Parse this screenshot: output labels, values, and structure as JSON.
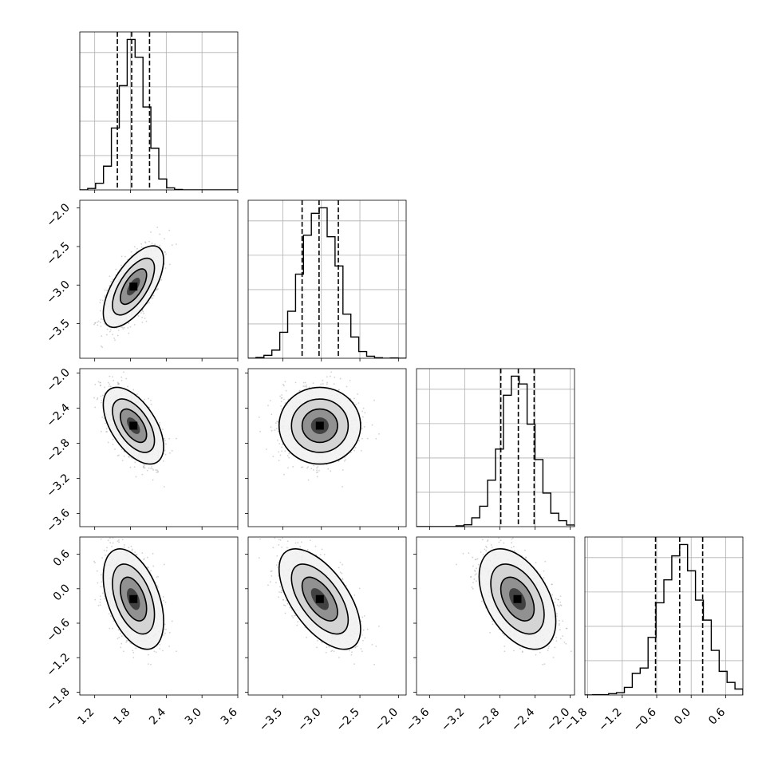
{
  "chart_data": {
    "type": "corner",
    "grid": true,
    "parameters": [
      {
        "name": "",
        "range": [
          0.95,
          3.6
        ],
        "ticks": [
          "1.2",
          "1.8",
          "2.4",
          "3.0",
          "3.6"
        ],
        "tick_values": [
          1.2,
          1.8,
          2.4,
          3.0,
          3.6
        ],
        "quantiles": [
          1.58,
          1.82,
          2.12
        ],
        "mean": 1.85,
        "sd": 0.22
      },
      {
        "name": "",
        "range": [
          -3.95,
          -1.9
        ],
        "ticks": [
          "-3.5",
          "-3.0",
          "-2.5",
          "-2.0"
        ],
        "tick_values": [
          -3.5,
          -3.0,
          -2.5,
          -2.0
        ],
        "quantiles": [
          -3.25,
          -3.03,
          -2.78
        ],
        "mean": -3.02,
        "sd": 0.23
      },
      {
        "name": "",
        "range": [
          -3.75,
          -1.95
        ],
        "ticks": [
          "-3.6",
          "-3.2",
          "-2.8",
          "-2.4",
          "-2.0"
        ],
        "tick_values": [
          -3.6,
          -3.2,
          -2.8,
          -2.4,
          -2.0
        ],
        "quantiles": [
          -2.79,
          -2.59,
          -2.41
        ],
        "mean": -2.6,
        "sd": 0.19
      },
      {
        "name": "",
        "range": [
          -1.85,
          0.9
        ],
        "ticks": [
          "-1.8",
          "-1.2",
          "-0.6",
          "0.0",
          "0.6"
        ],
        "tick_values": [
          -1.8,
          -1.2,
          -0.6,
          0.0,
          0.6
        ],
        "quantiles": [
          -0.62,
          -0.2,
          0.2
        ],
        "mean": -0.18,
        "sd": 0.38
      }
    ],
    "correlations": [
      [
        1.0,
        0.65,
        -0.55,
        -0.45
      ],
      [
        0.65,
        1.0,
        0.0,
        -0.6
      ],
      [
        -0.55,
        0.0,
        1.0,
        -0.45
      ],
      [
        -0.45,
        -0.6,
        -0.45,
        1.0
      ]
    ],
    "histogram_bins": 20,
    "levels": [
      0.39,
      0.86,
      0.99
    ]
  }
}
